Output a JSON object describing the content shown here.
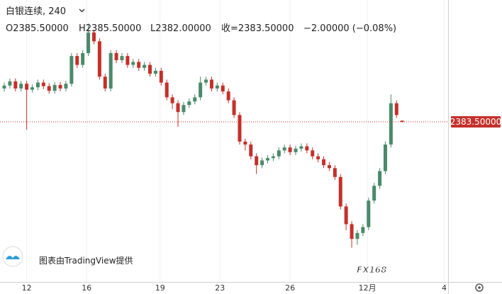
{
  "chart_data": {
    "type": "candlestick",
    "title": "白银连续, 240",
    "ohlc_text": {
      "open": "O2385.50000",
      "high": "H2385.50000",
      "low": "L2382.00000",
      "close": "收=2383.50000",
      "change": "−2.00000 (−0.08%)"
    },
    "attribution": "图表由TradingView提供",
    "watermark": "FX168",
    "up_color": "#4a8a6a",
    "down_color": "#c4302b",
    "ylim": [
      2112,
      2590
    ],
    "xlim": [
      -0.76,
      79.2
    ],
    "xticks": [
      {
        "value": 4,
        "label": "12"
      },
      {
        "value": 14.7,
        "label": "16"
      },
      {
        "value": 27.8,
        "label": "19"
      },
      {
        "value": 38.5,
        "label": "23"
      },
      {
        "value": 51,
        "label": "26"
      },
      {
        "value": 64.8,
        "label": "12月"
      },
      {
        "value": 78.5,
        "label": "4"
      }
    ],
    "grid": true,
    "last_price": {
      "value": 2383.5,
      "label": "2383.50000"
    },
    "open": [
      2440,
      2445,
      2452,
      2440,
      2448,
      2438,
      2442,
      2450,
      2444,
      2436,
      2446,
      2440,
      2448,
      2495,
      2480,
      2500,
      2535,
      2520,
      2460,
      2440,
      2500,
      2488,
      2495,
      2480,
      2485,
      2475,
      2480,
      2465,
      2470,
      2450,
      2425,
      2415,
      2400,
      2412,
      2418,
      2425,
      2450,
      2455,
      2440,
      2445,
      2435,
      2420,
      2395,
      2350,
      2345,
      2325,
      2310,
      2318,
      2322,
      2325,
      2335,
      2340,
      2332,
      2338,
      2342,
      2335,
      2325,
      2320,
      2310,
      2305,
      2290,
      2240,
      2210,
      2185,
      2195,
      2205,
      2250,
      2275,
      2300,
      2345,
      2415,
      2385.5
    ],
    "high": [
      2450,
      2457,
      2457,
      2453,
      2453,
      2447,
      2455,
      2455,
      2449,
      2451,
      2451,
      2453,
      2500,
      2500,
      2505,
      2550,
      2540,
      2525,
      2465,
      2505,
      2505,
      2500,
      2500,
      2490,
      2490,
      2485,
      2485,
      2475,
      2475,
      2455,
      2430,
      2420,
      2417,
      2423,
      2430,
      2460,
      2460,
      2460,
      2450,
      2450,
      2440,
      2425,
      2400,
      2355,
      2350,
      2330,
      2323,
      2327,
      2330,
      2340,
      2345,
      2345,
      2343,
      2347,
      2347,
      2340,
      2330,
      2325,
      2315,
      2310,
      2295,
      2245,
      2215,
      2200,
      2210,
      2255,
      2280,
      2305,
      2350,
      2430,
      2420,
      2385.5
    ],
    "low": [
      2435,
      2440,
      2435,
      2435,
      2370,
      2433,
      2437,
      2439,
      2431,
      2431,
      2435,
      2435,
      2443,
      2475,
      2475,
      2495,
      2515,
      2455,
      2435,
      2435,
      2483,
      2483,
      2475,
      2475,
      2470,
      2470,
      2460,
      2460,
      2445,
      2420,
      2405,
      2375,
      2395,
      2407,
      2413,
      2420,
      2445,
      2435,
      2435,
      2430,
      2415,
      2390,
      2345,
      2335,
      2320,
      2295,
      2305,
      2313,
      2317,
      2320,
      2330,
      2327,
      2327,
      2333,
      2330,
      2320,
      2315,
      2305,
      2300,
      2285,
      2235,
      2200,
      2170,
      2175,
      2190,
      2200,
      2245,
      2270,
      2295,
      2340,
      2390,
      2382
    ],
    "close": [
      2445,
      2452,
      2440,
      2448,
      2438,
      2442,
      2450,
      2444,
      2436,
      2446,
      2440,
      2448,
      2495,
      2480,
      2500,
      2535,
      2520,
      2460,
      2440,
      2500,
      2488,
      2495,
      2480,
      2485,
      2475,
      2480,
      2465,
      2470,
      2450,
      2425,
      2415,
      2400,
      2412,
      2418,
      2425,
      2450,
      2455,
      2440,
      2445,
      2435,
      2420,
      2395,
      2350,
      2345,
      2325,
      2310,
      2318,
      2322,
      2325,
      2335,
      2340,
      2332,
      2338,
      2342,
      2335,
      2325,
      2320,
      2310,
      2305,
      2290,
      2240,
      2210,
      2185,
      2195,
      2205,
      2250,
      2275,
      2300,
      2345,
      2415,
      2395,
      2383.5
    ]
  }
}
